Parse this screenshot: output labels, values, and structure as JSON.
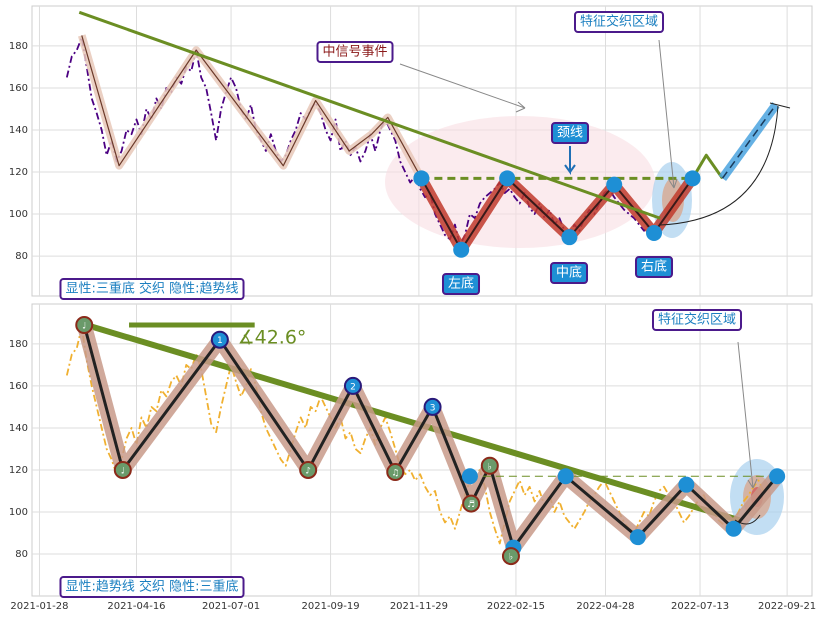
{
  "chart_data": [
    {
      "type": "line",
      "xlim": [
        -6,
        621
      ],
      "ylim": [
        61,
        199
      ],
      "yticks": [
        80,
        100,
        120,
        140,
        160,
        180
      ],
      "xticks": [
        0,
        78,
        154,
        234,
        305,
        383,
        455,
        531,
        601
      ],
      "grid": true,
      "series": [
        {
          "color": "#4b0082",
          "width": 1.8,
          "dash": "dashdot",
          "x": [
            22,
            26,
            30,
            34,
            38,
            42,
            46,
            50,
            54,
            58,
            62,
            66,
            70,
            74,
            78,
            82,
            86,
            90,
            94,
            98,
            102,
            106,
            110,
            114,
            118,
            122,
            126,
            130,
            134,
            138,
            142,
            146,
            150,
            154,
            158,
            162,
            166,
            170,
            174,
            178,
            182,
            186,
            190,
            194,
            198,
            202,
            206,
            210,
            214,
            218,
            222,
            226,
            230,
            234,
            238,
            242,
            246,
            250,
            254,
            258,
            262,
            266,
            270,
            274,
            278,
            282,
            286,
            290,
            294,
            298,
            302,
            306,
            310,
            314,
            318,
            322,
            326,
            330,
            334,
            338,
            342,
            346,
            350,
            354,
            358,
            362,
            366,
            370,
            374,
            378,
            382,
            386,
            390,
            394,
            398,
            402,
            406,
            410,
            414,
            418,
            422,
            426,
            430,
            434,
            438,
            442,
            446,
            450,
            454,
            458,
            462,
            466,
            470,
            474,
            478,
            482,
            486,
            490,
            494
          ],
          "values": [
            165,
            175,
            178,
            184,
            170,
            155,
            148,
            140,
            128,
            135,
            125,
            130,
            140,
            138,
            145,
            138,
            150,
            145,
            155,
            150,
            160,
            158,
            165,
            162,
            170,
            168,
            178,
            165,
            160,
            148,
            135,
            150,
            158,
            165,
            160,
            150,
            145,
            152,
            140,
            135,
            130,
            138,
            130,
            125,
            128,
            135,
            140,
            148,
            145,
            150,
            153,
            148,
            140,
            135,
            145,
            130,
            135,
            128,
            132,
            125,
            130,
            138,
            130,
            140,
            145,
            140,
            135,
            125,
            120,
            115,
            118,
            112,
            108,
            110,
            100,
            95,
            90,
            88,
            95,
            85,
            90,
            100,
            98,
            105,
            108,
            110,
            112,
            115,
            110,
            112,
            108,
            105,
            110,
            103,
            100,
            105,
            98,
            102,
            95,
            98,
            92,
            90,
            95,
            92,
            98,
            102,
            100,
            105,
            110,
            112,
            108,
            105,
            102,
            100,
            98,
            95,
            92,
            95,
            92
          ]
        },
        {
          "color": "#6b3a2a",
          "width": 1.2,
          "dash": "solid",
          "halo": "#e8c8b8",
          "x": [
            34,
            64,
            126,
            196,
            222,
            249,
            267,
            280,
            307
          ],
          "values": [
            185,
            123,
            178,
            123,
            154,
            130,
            138,
            146,
            117
          ]
        },
        {
          "color": "#3a1a1a",
          "width": 2,
          "dash": "solid",
          "halo": "#c0392b",
          "x": [
            307,
            339,
            376,
            426,
            462,
            494,
            525
          ],
          "values": [
            117,
            83,
            117,
            89,
            114,
            91,
            117
          ]
        },
        {
          "color": "#6b8e23",
          "width": 3,
          "dash": "solid",
          "x": [
            32,
            499
          ],
          "values": [
            196,
            98
          ]
        },
        {
          "color": "#6b8e23",
          "width": 3,
          "dash": "dashed",
          "x": [
            307,
            525
          ],
          "values": [
            117,
            117
          ]
        },
        {
          "color": "#6b8e23",
          "width": 3,
          "dash": "solid",
          "x": [
            525,
            536,
            549
          ],
          "values": [
            117,
            128,
            117
          ]
        },
        {
          "color": "#1a3a5a",
          "width": 1.5,
          "dash": "dashed",
          "halo": "#4aa3df",
          "x": [
            549,
            592
          ],
          "values": [
            117,
            152
          ]
        }
      ],
      "points": {
        "color": "#1e8fd5",
        "x": [
          307,
          339,
          376,
          426,
          462,
          494,
          525
        ],
        "values": [
          117,
          83,
          117,
          89,
          114,
          91,
          117
        ]
      },
      "annotations": [
        {
          "text": "中信号事件",
          "color": "#8b1a1a",
          "fill": "#fff"
        },
        {
          "text": "特征交织区域",
          "color": "#1a7fc0",
          "fill": "#fff"
        },
        {
          "text": "颈线",
          "color": "#fff",
          "fill": "#1e8fd5"
        },
        {
          "text": "左底",
          "color": "#fff",
          "fill": "#1e8fd5"
        },
        {
          "text": "中底",
          "color": "#fff",
          "fill": "#1e8fd5"
        },
        {
          "text": "右底",
          "color": "#fff",
          "fill": "#1e8fd5"
        },
        {
          "text": "显性:三重底 交织 隐性:趋势线",
          "color": "#1a7fc0",
          "fill": "#fff"
        }
      ]
    },
    {
      "type": "line",
      "xlim": [
        -6,
        621
      ],
      "ylim": [
        60,
        199
      ],
      "yticks": [
        80,
        100,
        120,
        140,
        160,
        180
      ],
      "xticks": [
        {
          "value": 0,
          "label": "2021-01-28"
        },
        {
          "value": 78,
          "label": "2021-04-16"
        },
        {
          "value": 154,
          "label": "2021-07-01"
        },
        {
          "value": 234,
          "label": "2021-09-19"
        },
        {
          "value": 305,
          "label": "2021-11-29"
        },
        {
          "value": 383,
          "label": "2022-02-15"
        },
        {
          "value": 455,
          "label": "2022-04-28"
        },
        {
          "value": 531,
          "label": "2022-07-13"
        },
        {
          "value": 601,
          "label": "2022-09-21"
        }
      ],
      "grid": true,
      "series": [
        {
          "color": "#f0b030",
          "width": 1.8,
          "dash": "dashdot",
          "x": [
            22,
            26,
            30,
            34,
            38,
            42,
            46,
            50,
            54,
            58,
            62,
            66,
            70,
            74,
            78,
            82,
            86,
            90,
            94,
            98,
            102,
            106,
            110,
            114,
            118,
            122,
            126,
            130,
            134,
            138,
            142,
            146,
            150,
            154,
            158,
            162,
            166,
            170,
            174,
            178,
            182,
            186,
            190,
            194,
            198,
            202,
            206,
            210,
            214,
            218,
            222,
            226,
            230,
            234,
            238,
            242,
            246,
            250,
            254,
            258,
            262,
            266,
            270,
            274,
            278,
            282,
            286,
            290,
            294,
            298,
            302,
            306,
            310,
            314,
            318,
            322,
            326,
            330,
            334,
            338,
            342,
            346,
            350,
            354,
            358,
            362,
            366,
            370,
            374,
            378,
            382,
            386,
            390,
            394,
            398,
            402,
            406,
            410,
            414,
            418,
            422,
            426,
            430,
            434,
            438,
            442,
            446,
            450,
            454,
            458,
            462,
            466,
            470,
            474,
            478,
            482,
            486,
            490,
            494,
            498,
            502,
            506,
            510,
            514,
            518,
            522,
            526,
            530,
            534,
            538,
            542,
            546,
            550,
            554,
            558,
            562,
            566,
            570,
            574,
            578,
            582,
            586,
            590
          ],
          "values": [
            165,
            175,
            178,
            188,
            172,
            160,
            150,
            140,
            130,
            125,
            118,
            125,
            135,
            140,
            132,
            145,
            140,
            150,
            148,
            158,
            155,
            162,
            165,
            160,
            170,
            168,
            175,
            168,
            155,
            142,
            138,
            150,
            160,
            170,
            162,
            155,
            160,
            168,
            160,
            148,
            140,
            135,
            130,
            125,
            122,
            130,
            138,
            145,
            140,
            150,
            148,
            155,
            150,
            145,
            140,
            145,
            135,
            138,
            130,
            128,
            135,
            140,
            132,
            140,
            145,
            138,
            130,
            122,
            118,
            120,
            115,
            118,
            112,
            108,
            110,
            100,
            95,
            98,
            92,
            100,
            108,
            115,
            118,
            120,
            112,
            100,
            92,
            85,
            95,
            105,
            110,
            115,
            108,
            112,
            105,
            110,
            103,
            108,
            100,
            105,
            98,
            95,
            92,
            96,
            100,
            105,
            108,
            112,
            115,
            110,
            105,
            100,
            95,
            92,
            90,
            95,
            100,
            98,
            105,
            110,
            112,
            108,
            105,
            100,
            95,
            98,
            102,
            106,
            108,
            102,
            100,
            96,
            94,
            92,
            96,
            100,
            105,
            108,
            112,
            115,
            110,
            112,
            116
          ]
        },
        {
          "color": "#6b8e23",
          "width": 6,
          "dash": "solid",
          "x": [
            32,
            563
          ],
          "values": [
            190,
            96
          ]
        },
        {
          "color": "#6b8e23",
          "width": 5,
          "dash": "solid",
          "x": [
            72,
            173
          ],
          "values": [
            189,
            189
          ]
        },
        {
          "color": "#222",
          "width": 3,
          "dash": "solid",
          "halo": "#c89a8a",
          "x": [
            36,
            67,
            145,
            216,
            252,
            286,
            316,
            347,
            362,
            381,
            423,
            481,
            520,
            558,
            593
          ],
          "values": [
            189,
            120,
            182,
            120,
            160,
            119,
            150,
            104,
            122,
            83,
            117,
            88,
            113,
            92,
            117
          ]
        },
        {
          "color": "#6b8e23",
          "width": 1,
          "dash": "dashed",
          "x": [
            346,
            593
          ],
          "values": [
            117,
            117
          ]
        }
      ],
      "points": {
        "color": "#1e8fd5",
        "x": [
          346,
          381,
          423,
          481,
          520,
          558,
          593
        ],
        "values": [
          117,
          83,
          117,
          88,
          113,
          92,
          117
        ]
      },
      "labeled_points": {
        "fill": "#6a9a6a",
        "stroke": "#8b2a1a",
        "x": [
          36,
          67,
          216,
          286,
          347,
          362,
          379
        ],
        "values": [
          189,
          120,
          120,
          119,
          104,
          122,
          79
        ],
        "labels": [
          "♩",
          "♩",
          "♪",
          "♫",
          "♬",
          "♭",
          "♭"
        ]
      },
      "numbered_points": {
        "fill": "#1e8fd5",
        "stroke": "#2a1a7a",
        "x": [
          145,
          252,
          316
        ],
        "values": [
          182,
          160,
          150
        ],
        "labels": [
          "1",
          "2",
          "3"
        ]
      },
      "annotations": [
        {
          "text": "特征交织区域",
          "color": "#1a7fc0",
          "fill": "#fff"
        },
        {
          "text": "显性:趋势线 交织 隐性:三重底",
          "color": "#1a7fc0",
          "fill": "#fff"
        },
        {
          "text": "∡42.6°",
          "color": "#6b8e23",
          "plain": true
        }
      ]
    }
  ]
}
